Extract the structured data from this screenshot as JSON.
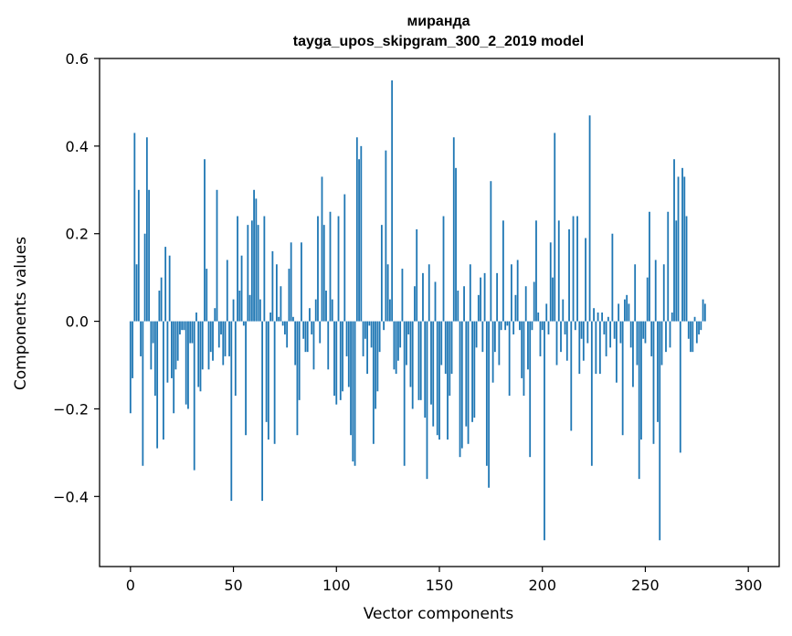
{
  "chart_data": {
    "type": "bar",
    "title": "миранда",
    "subtitle": "tayga_upos_skipgram_300_2_2019 model",
    "xlabel": "Vector components",
    "ylabel": "Components values",
    "xlim": [
      -15,
      315
    ],
    "ylim": [
      -0.56,
      0.6
    ],
    "xticks": [
      0,
      50,
      100,
      150,
      200,
      250,
      300
    ],
    "yticks": [
      -0.4,
      -0.2,
      0.0,
      0.2,
      0.4,
      0.6
    ],
    "ytick_labels": [
      "−0.4",
      "−0.2",
      "0.0",
      "0.2",
      "0.4",
      "0.6"
    ],
    "grid": false,
    "bar_color": "#1f77b4",
    "values": [
      -0.21,
      -0.13,
      0.43,
      0.13,
      0.3,
      -0.08,
      -0.33,
      0.2,
      0.42,
      0.3,
      -0.11,
      -0.05,
      -0.17,
      -0.29,
      0.07,
      0.1,
      -0.27,
      0.17,
      -0.14,
      0.15,
      -0.13,
      -0.21,
      -0.11,
      -0.09,
      -0.03,
      -0.02,
      -0.02,
      -0.19,
      -0.2,
      -0.05,
      -0.05,
      -0.34,
      0.02,
      -0.15,
      -0.16,
      -0.11,
      0.37,
      0.12,
      -0.11,
      -0.07,
      -0.09,
      0.03,
      0.3,
      -0.06,
      -0.03,
      -0.1,
      -0.08,
      0.14,
      -0.08,
      -0.41,
      0.05,
      -0.17,
      0.24,
      0.07,
      0.15,
      -0.01,
      -0.26,
      0.22,
      0.06,
      0.23,
      0.3,
      0.28,
      0.22,
      0.05,
      -0.41,
      0.24,
      -0.23,
      -0.27,
      0.02,
      0.16,
      -0.28,
      0.13,
      0.01,
      0.08,
      -0.01,
      -0.03,
      -0.06,
      0.12,
      0.18,
      0.01,
      -0.1,
      -0.26,
      -0.18,
      0.18,
      -0.04,
      -0.07,
      -0.07,
      0.03,
      -0.03,
      -0.11,
      0.05,
      0.24,
      -0.05,
      0.33,
      0.22,
      0.07,
      -0.11,
      0.25,
      0.05,
      -0.17,
      -0.19,
      0.24,
      -0.18,
      -0.16,
      0.29,
      -0.08,
      -0.15,
      -0.26,
      -0.32,
      -0.33,
      0.42,
      0.37,
      0.4,
      -0.08,
      -0.04,
      -0.12,
      -0.01,
      -0.06,
      -0.28,
      -0.2,
      -0.16,
      -0.07,
      0.22,
      -0.02,
      0.39,
      0.13,
      0.05,
      0.55,
      -0.11,
      -0.12,
      -0.09,
      -0.06,
      0.12,
      -0.33,
      -0.1,
      -0.03,
      -0.15,
      -0.2,
      0.08,
      0.21,
      -0.18,
      -0.18,
      0.11,
      -0.22,
      -0.36,
      0.13,
      -0.19,
      -0.24,
      0.09,
      -0.26,
      -0.27,
      -0.1,
      0.24,
      -0.12,
      -0.27,
      -0.17,
      -0.12,
      0.42,
      0.35,
      0.07,
      -0.31,
      -0.29,
      0.08,
      -0.24,
      -0.28,
      0.13,
      -0.23,
      -0.22,
      -0.06,
      0.06,
      0.1,
      -0.07,
      0.11,
      -0.33,
      -0.38,
      0.32,
      -0.14,
      -0.07,
      0.11,
      -0.1,
      -0.02,
      0.23,
      -0.02,
      -0.01,
      -0.17,
      0.13,
      -0.03,
      0.06,
      0.14,
      -0.02,
      -0.13,
      -0.17,
      0.08,
      -0.11,
      -0.31,
      -0.02,
      0.09,
      0.23,
      0.02,
      -0.08,
      -0.02,
      -0.5,
      0.04,
      -0.03,
      0.18,
      0.1,
      0.43,
      -0.1,
      0.23,
      -0.07,
      0.05,
      -0.03,
      -0.09,
      0.21,
      -0.25,
      0.24,
      -0.02,
      0.24,
      -0.12,
      -0.04,
      -0.09,
      0.19,
      -0.05,
      0.47,
      -0.33,
      0.03,
      -0.12,
      0.02,
      -0.12,
      0.02,
      -0.03,
      -0.08,
      0.01,
      -0.06,
      0.2,
      -0.04,
      -0.14,
      0.04,
      -0.05,
      -0.26,
      0.05,
      0.06,
      0.04,
      -0.06,
      -0.15,
      0.13,
      -0.1,
      -0.36,
      -0.27,
      -0.04,
      -0.05,
      0.1,
      0.25,
      -0.08,
      -0.28,
      0.14,
      -0.23,
      -0.5,
      -0.1,
      0.13,
      -0.07,
      0.25,
      -0.06,
      0.02,
      0.37,
      0.23,
      0.33,
      -0.3,
      0.35,
      0.33,
      0.24,
      -0.04,
      -0.07,
      -0.07,
      0.01,
      -0.05,
      -0.03,
      -0.02,
      0.05,
      0.04
    ]
  }
}
